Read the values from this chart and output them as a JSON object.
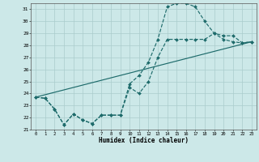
{
  "background_color": "#cce8e8",
  "grid_color": "#aacccc",
  "line_color": "#1e6b6b",
  "xlabel": "Humidex (Indice chaleur)",
  "ylim": [
    21,
    31.5
  ],
  "xlim": [
    -0.5,
    23.5
  ],
  "ytick_vals": [
    21,
    22,
    23,
    24,
    25,
    26,
    27,
    28,
    29,
    30,
    31
  ],
  "xtick_vals": [
    0,
    1,
    2,
    3,
    4,
    5,
    6,
    7,
    8,
    9,
    10,
    11,
    12,
    13,
    14,
    15,
    16,
    17,
    18,
    19,
    20,
    21,
    22,
    23
  ],
  "curve1_x": [
    0,
    1,
    2,
    3,
    4,
    5,
    6,
    7,
    8,
    9,
    10,
    11,
    12,
    13,
    14,
    15,
    16,
    17,
    18,
    19,
    20,
    21,
    22,
    23
  ],
  "curve1_y": [
    23.7,
    23.6,
    22.7,
    21.4,
    22.3,
    21.8,
    21.5,
    22.2,
    22.2,
    22.2,
    24.8,
    25.5,
    26.6,
    28.5,
    31.2,
    31.5,
    31.5,
    31.2,
    30.0,
    29.0,
    28.8,
    28.8,
    28.2,
    28.3
  ],
  "curve2_x": [
    0,
    1,
    2,
    3,
    4,
    5,
    6,
    7,
    8,
    9,
    10,
    11,
    12,
    13,
    14,
    15,
    16,
    17,
    18,
    19,
    20,
    21,
    22,
    23
  ],
  "curve2_y": [
    23.7,
    23.6,
    22.7,
    21.4,
    22.3,
    21.8,
    21.5,
    22.2,
    22.2,
    22.2,
    24.5,
    24.0,
    25.0,
    27.0,
    28.5,
    28.5,
    28.5,
    28.5,
    28.5,
    29.0,
    28.5,
    28.3,
    28.2,
    28.3
  ],
  "curve3_x": [
    0,
    23
  ],
  "curve3_y": [
    23.7,
    28.3
  ]
}
